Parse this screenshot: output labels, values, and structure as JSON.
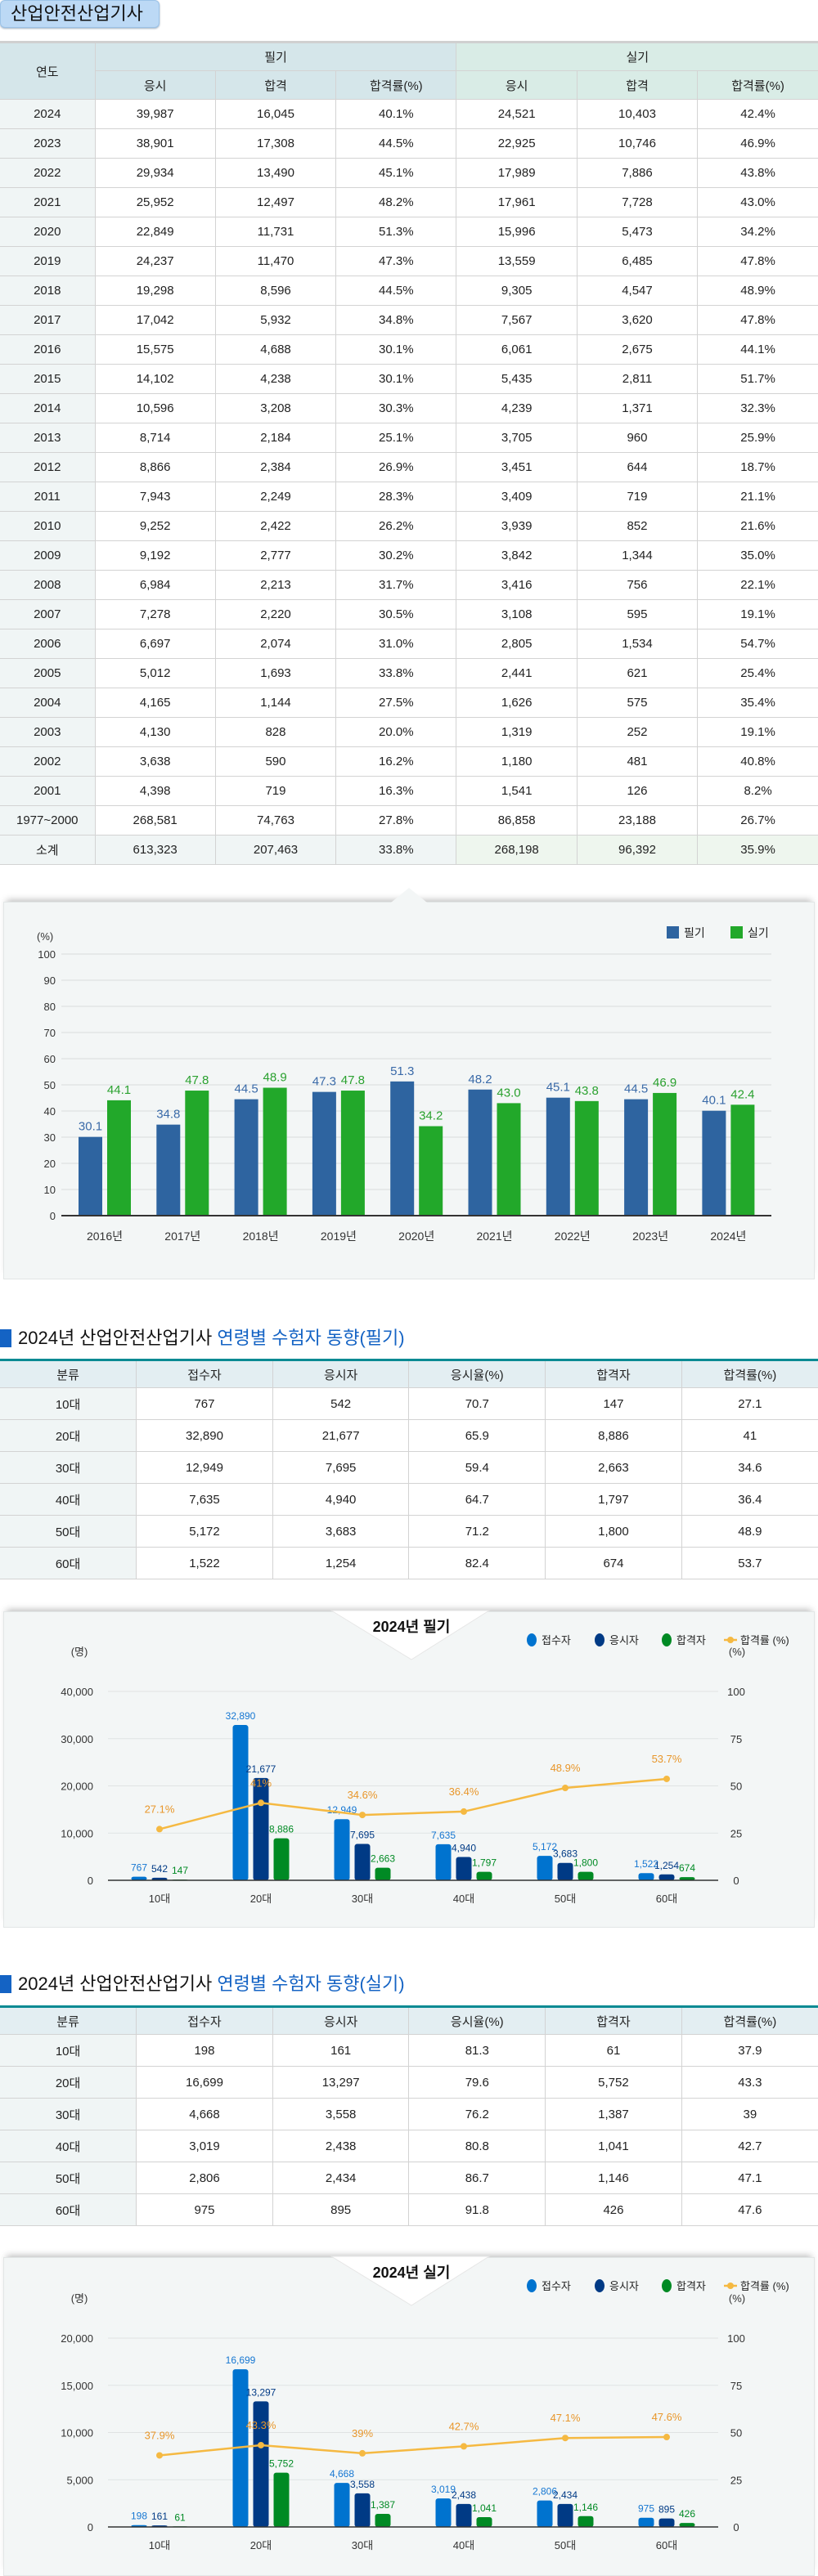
{
  "title": "산업안전산업기사",
  "table1": {
    "year_header": "연도",
    "written": "필기",
    "practical": "실기",
    "cols": [
      "응시",
      "합격",
      "합격률(%)",
      "응시",
      "합격",
      "합격률(%)"
    ],
    "rows": [
      [
        "2024",
        "39,987",
        "16,045",
        "40.1%",
        "24,521",
        "10,403",
        "42.4%"
      ],
      [
        "2023",
        "38,901",
        "17,308",
        "44.5%",
        "22,925",
        "10,746",
        "46.9%"
      ],
      [
        "2022",
        "29,934",
        "13,490",
        "45.1%",
        "17,989",
        "7,886",
        "43.8%"
      ],
      [
        "2021",
        "25,952",
        "12,497",
        "48.2%",
        "17,961",
        "7,728",
        "43.0%"
      ],
      [
        "2020",
        "22,849",
        "11,731",
        "51.3%",
        "15,996",
        "5,473",
        "34.2%"
      ],
      [
        "2019",
        "24,237",
        "11,470",
        "47.3%",
        "13,559",
        "6,485",
        "47.8%"
      ],
      [
        "2018",
        "19,298",
        "8,596",
        "44.5%",
        "9,305",
        "4,547",
        "48.9%"
      ],
      [
        "2017",
        "17,042",
        "5,932",
        "34.8%",
        "7,567",
        "3,620",
        "47.8%"
      ],
      [
        "2016",
        "15,575",
        "4,688",
        "30.1%",
        "6,061",
        "2,675",
        "44.1%"
      ],
      [
        "2015",
        "14,102",
        "4,238",
        "30.1%",
        "5,435",
        "2,811",
        "51.7%"
      ],
      [
        "2014",
        "10,596",
        "3,208",
        "30.3%",
        "4,239",
        "1,371",
        "32.3%"
      ],
      [
        "2013",
        "8,714",
        "2,184",
        "25.1%",
        "3,705",
        "960",
        "25.9%"
      ],
      [
        "2012",
        "8,866",
        "2,384",
        "26.9%",
        "3,451",
        "644",
        "18.7%"
      ],
      [
        "2011",
        "7,943",
        "2,249",
        "28.3%",
        "3,409",
        "719",
        "21.1%"
      ],
      [
        "2010",
        "9,252",
        "2,422",
        "26.2%",
        "3,939",
        "852",
        "21.6%"
      ],
      [
        "2009",
        "9,192",
        "2,777",
        "30.2%",
        "3,842",
        "1,344",
        "35.0%"
      ],
      [
        "2008",
        "6,984",
        "2,213",
        "31.7%",
        "3,416",
        "756",
        "22.1%"
      ],
      [
        "2007",
        "7,278",
        "2,220",
        "30.5%",
        "3,108",
        "595",
        "19.1%"
      ],
      [
        "2006",
        "6,697",
        "2,074",
        "31.0%",
        "2,805",
        "1,534",
        "54.7%"
      ],
      [
        "2005",
        "5,012",
        "1,693",
        "33.8%",
        "2,441",
        "621",
        "25.4%"
      ],
      [
        "2004",
        "4,165",
        "1,144",
        "27.5%",
        "1,626",
        "575",
        "35.4%"
      ],
      [
        "2003",
        "4,130",
        "828",
        "20.0%",
        "1,319",
        "252",
        "19.1%"
      ],
      [
        "2002",
        "3,638",
        "590",
        "16.2%",
        "1,180",
        "481",
        "40.8%"
      ],
      [
        "2001",
        "4,398",
        "719",
        "16.3%",
        "1,541",
        "126",
        "8.2%"
      ],
      [
        "1977~2000",
        "268,581",
        "74,763",
        "27.8%",
        "86,858",
        "23,188",
        "26.7%"
      ]
    ],
    "total": [
      "소계",
      "613,323",
      "207,463",
      "33.8%",
      "268,198",
      "96,392",
      "35.9%"
    ]
  },
  "section2": {
    "prefix": "2024년 산업안전산업기사 ",
    "highlight": "연령별 수험자 동향(필기)"
  },
  "section3": {
    "prefix": "2024년 산업안전산업기사 ",
    "highlight": "연령별 수험자 동향(실기)"
  },
  "age_table_cols": [
    "분류",
    "접수자",
    "응시자",
    "응시율(%)",
    "합격자",
    "합격률(%)"
  ],
  "age_table_written": [
    [
      "10대",
      "767",
      "542",
      "70.7",
      "147",
      "27.1"
    ],
    [
      "20대",
      "32,890",
      "21,677",
      "65.9",
      "8,886",
      "41"
    ],
    [
      "30대",
      "12,949",
      "7,695",
      "59.4",
      "2,663",
      "34.6"
    ],
    [
      "40대",
      "7,635",
      "4,940",
      "64.7",
      "1,797",
      "36.4"
    ],
    [
      "50대",
      "5,172",
      "3,683",
      "71.2",
      "1,800",
      "48.9"
    ],
    [
      "60대",
      "1,522",
      "1,254",
      "82.4",
      "674",
      "53.7"
    ]
  ],
  "age_table_practical": [
    [
      "10대",
      "198",
      "161",
      "81.3",
      "61",
      "37.9"
    ],
    [
      "20대",
      "16,699",
      "13,297",
      "79.6",
      "5,752",
      "43.3"
    ],
    [
      "30대",
      "4,668",
      "3,558",
      "76.2",
      "1,387",
      "39"
    ],
    [
      "40대",
      "3,019",
      "2,438",
      "80.8",
      "1,041",
      "42.7"
    ],
    [
      "50대",
      "2,806",
      "2,434",
      "86.7",
      "1,146",
      "47.1"
    ],
    [
      "60대",
      "975",
      "895",
      "91.8",
      "426",
      "47.6"
    ]
  ],
  "chart_data": [
    {
      "type": "bar",
      "ylabel": "(%)",
      "ylim": [
        0,
        100
      ],
      "yticks": [
        0,
        10,
        20,
        30,
        40,
        50,
        60,
        70,
        80,
        90,
        100
      ],
      "grid": true,
      "legend": "top-right",
      "categories": [
        "2016년",
        "2017년",
        "2018년",
        "2019년",
        "2020년",
        "2021년",
        "2022년",
        "2023년",
        "2024년"
      ],
      "series": [
        {
          "name": "필기",
          "color": "#2e64a0",
          "label_color": "#3a6aa8",
          "values": [
            30.1,
            34.8,
            44.5,
            47.3,
            51.3,
            48.2,
            45.1,
            44.5,
            40.1
          ],
          "labels": [
            "30.1",
            "34.8",
            "44.5",
            "47.3",
            "51.3",
            "48.2",
            "45.1",
            "44.5",
            "40.1"
          ]
        },
        {
          "name": "실기",
          "color": "#22a82a",
          "label_color": "#2aa12f",
          "values": [
            44.1,
            47.8,
            48.9,
            47.8,
            34.2,
            43.0,
            43.8,
            46.9,
            42.4
          ],
          "labels": [
            "44.1",
            "47.8",
            "48.9",
            "47.8",
            "34.2",
            "43.0",
            "43.8",
            "46.9",
            "42.4"
          ]
        }
      ]
    },
    {
      "type": "bar+line",
      "title": "2024년 필기",
      "ylabel": "(명)",
      "y2label": "(%)",
      "ylim": [
        0,
        40000
      ],
      "y2lim": [
        0,
        100
      ],
      "yticks": [
        "0",
        "10,000",
        "20,000",
        "30,000",
        "40,000"
      ],
      "y2ticks": [
        "0",
        "25",
        "50",
        "75",
        "100"
      ],
      "grid": true,
      "legend": "top-right",
      "categories": [
        "10대",
        "20대",
        "30대",
        "40대",
        "50대",
        "60대"
      ],
      "series": [
        {
          "name": "접수자",
          "color": "#0073cf",
          "values": [
            767,
            32890,
            12949,
            7635,
            5172,
            1522
          ],
          "labels": [
            "767",
            "32,890",
            "12,949",
            "7,635",
            "5,172",
            "1,522"
          ]
        },
        {
          "name": "응시자",
          "color": "#003a85",
          "values": [
            542,
            21677,
            7695,
            4940,
            3683,
            1254
          ],
          "labels": [
            "542",
            "21,677",
            "7,695",
            "4,940",
            "3,683",
            "1,254"
          ]
        },
        {
          "name": "합격자",
          "color": "#008a24",
          "values": [
            147,
            8886,
            2663,
            1797,
            1800,
            674
          ],
          "labels": [
            "147",
            "8,886",
            "2,663",
            "1,797",
            "1,800",
            "674"
          ]
        },
        {
          "name": "합격률 (%)",
          "type": "line",
          "axis": "right",
          "color": "#f5b942",
          "label_color": "#e8962a",
          "values": [
            27.1,
            41,
            34.6,
            36.4,
            48.9,
            53.7
          ],
          "labels": [
            "27.1%",
            "41%",
            "34.6%",
            "36.4%",
            "48.9%",
            "53.7%"
          ]
        }
      ]
    },
    {
      "type": "bar+line",
      "title": "2024년 실기",
      "ylabel": "(명)",
      "y2label": "(%)",
      "ylim": [
        0,
        20000
      ],
      "y2lim": [
        0,
        100
      ],
      "yticks": [
        "0",
        "5,000",
        "10,000",
        "15,000",
        "20,000"
      ],
      "y2ticks": [
        "0",
        "25",
        "50",
        "75",
        "100"
      ],
      "grid": true,
      "legend": "top-right",
      "categories": [
        "10대",
        "20대",
        "30대",
        "40대",
        "50대",
        "60대"
      ],
      "series": [
        {
          "name": "접수자",
          "color": "#0073cf",
          "values": [
            198,
            16699,
            4668,
            3019,
            2806,
            975
          ],
          "labels": [
            "198",
            "16,699",
            "4,668",
            "3,019",
            "2,806",
            "975"
          ]
        },
        {
          "name": "응시자",
          "color": "#003a85",
          "values": [
            161,
            13297,
            3558,
            2438,
            2434,
            895
          ],
          "labels": [
            "161",
            "13,297",
            "3,558",
            "2,438",
            "2,434",
            "895"
          ]
        },
        {
          "name": "합격자",
          "color": "#008a24",
          "values": [
            61,
            5752,
            1387,
            1041,
            1146,
            426
          ],
          "labels": [
            "61",
            "5,752",
            "1,387",
            "1,041",
            "1,146",
            "426"
          ]
        },
        {
          "name": "합격률 (%)",
          "type": "line",
          "axis": "right",
          "color": "#f5b942",
          "label_color": "#e8962a",
          "values": [
            37.9,
            43.3,
            39,
            42.7,
            47.1,
            47.6
          ],
          "labels": [
            "37.9%",
            "43.3%",
            "39%",
            "42.7%",
            "47.1%",
            "47.6%"
          ]
        }
      ]
    }
  ]
}
